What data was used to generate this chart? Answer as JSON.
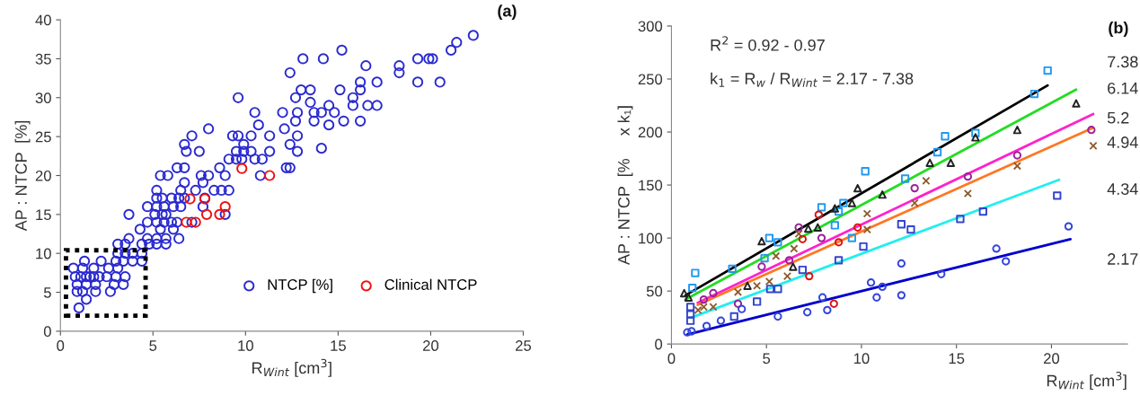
{
  "chart_data": [
    {
      "type": "scatter",
      "xlabel": "R$_{Wint}$ [cm$^{3}$]",
      "ylabel": "AP : NTCP  [%]",
      "xlim": [
        0,
        25
      ],
      "ylim": [
        0,
        40
      ],
      "xticks": [
        0,
        5,
        10,
        15,
        20,
        25
      ],
      "yticks": [
        0,
        5,
        10,
        15,
        20,
        25,
        30,
        35,
        40
      ],
      "grid": false,
      "legend": "lower right",
      "annotations": [
        "(a)"
      ],
      "series": [
        {
          "name": "NTCP [%]",
          "color": "#2a2ad0",
          "marker": "circle",
          "x": [
            9.6,
            10.5,
            10.7,
            8.0,
            7.1,
            9.3,
            9.6,
            10.3,
            11.3,
            6.7,
            9.9,
            6.8,
            7.5,
            9.5,
            9.9,
            10.3,
            11.3,
            9.1,
            9.5,
            9.8,
            10.5,
            10.9,
            6.3,
            6.7,
            8.6,
            5.4,
            5.8,
            7.6,
            8.0,
            8.9,
            10.8,
            6.7,
            7.7,
            5.2,
            6.5,
            7.3,
            8.3,
            8.7,
            9.1,
            5.2,
            5.5,
            6.0,
            6.4,
            6.7,
            7.8,
            4.7,
            5.2,
            5.6,
            6.1,
            6.5,
            7.7,
            3.7,
            5.1,
            5.5,
            5.7,
            8.9,
            4.7,
            5.2,
            5.6,
            6.0,
            6.3,
            7.1,
            4.3,
            5.4,
            6.1,
            3.7,
            4.7,
            5.2,
            5.7,
            6.4,
            3.1,
            3.5,
            4.4,
            4.8,
            5.2,
            5.7,
            3.1,
            3.5,
            3.9,
            4.4,
            1.3,
            2.2,
            3.0,
            3.4,
            3.9,
            4.4,
            0.7,
            1.2,
            1.8,
            2.6,
            3.1,
            0.8,
            1.1,
            1.4,
            1.6,
            1.8,
            2.1,
            2.5,
            3.0,
            3.5,
            0.9,
            1.4,
            1.9,
            2.9,
            3.4,
            0.9,
            1.2,
            1.9,
            2.7,
            1.4,
            1.0,
            12.8,
            12.4,
            12.8,
            12.2,
            12.4,
            22.3,
            21.4,
            21.1,
            15.2,
            13.1,
            14.2,
            19.3,
            19.9,
            20.1,
            16.5,
            18.3,
            12.4,
            18.3,
            16.2,
            17.1,
            19.3,
            20.5,
            13.0,
            13.5,
            15.1,
            16.2,
            12.7,
            15.8,
            13.5,
            14.5,
            15.8,
            16.6,
            17.1,
            12.0,
            12.8,
            13.7,
            14.1,
            14.8,
            12.7,
            13.7,
            15.3,
            16.2,
            14.5,
            12.1,
            14.1
          ],
          "values": [
            30.0,
            28.1,
            26.5,
            26.0,
            25.1,
            25.1,
            25.1,
            25.1,
            25.1,
            24.0,
            24.0,
            23.1,
            23.1,
            23.1,
            23.1,
            23.1,
            23.1,
            22.1,
            22.1,
            22.1,
            22.1,
            22.1,
            21.0,
            21.0,
            21.0,
            20.0,
            20.0,
            20.0,
            20.0,
            20.0,
            20.0,
            19.1,
            19.1,
            18.1,
            18.1,
            18.1,
            18.1,
            18.1,
            18.1,
            17.1,
            17.1,
            17.1,
            17.1,
            17.1,
            17.1,
            16.0,
            16.0,
            16.0,
            16.0,
            16.0,
            16.0,
            15.0,
            15.0,
            15.0,
            15.0,
            15.0,
            14.0,
            14.0,
            14.0,
            14.0,
            14.0,
            14.0,
            13.1,
            13.1,
            13.1,
            11.9,
            11.9,
            11.9,
            11.9,
            11.9,
            11.2,
            11.2,
            11.2,
            11.2,
            11.2,
            11.2,
            10.0,
            10.0,
            10.0,
            10.0,
            9.0,
            9.0,
            9.0,
            9.0,
            9.0,
            9.0,
            8.1,
            8.1,
            8.1,
            8.1,
            8.1,
            7.0,
            7.0,
            7.0,
            7.0,
            7.0,
            7.0,
            7.0,
            7.0,
            7.0,
            6.0,
            6.0,
            6.0,
            6.0,
            6.0,
            5.1,
            5.1,
            5.1,
            5.1,
            4.1,
            3.0,
            25.1,
            24.0,
            23.1,
            21.0,
            21.0,
            38.0,
            37.1,
            36.1,
            36.1,
            35.0,
            35.0,
            35.0,
            35.0,
            35.0,
            34.1,
            34.1,
            33.2,
            33.2,
            32.0,
            32.0,
            32.0,
            32.0,
            31.0,
            31.0,
            31.0,
            31.0,
            30.0,
            30.0,
            29.4,
            29.0,
            29.0,
            29.0,
            29.0,
            28.1,
            28.1,
            28.1,
            28.1,
            28.1,
            27.0,
            27.0,
            27.0,
            27.0,
            26.5,
            26.0,
            23.5
          ]
        },
        {
          "name": "Clinical NTCP",
          "color": "#ee1111",
          "marker": "circle",
          "x": [
            9.8,
            11.3,
            7.0,
            7.8,
            8.9,
            7.9,
            8.6,
            6.8,
            7.3
          ],
          "values": [
            20.9,
            20.0,
            17.0,
            17.0,
            16.0,
            15.0,
            15.0,
            14.0,
            14.0
          ]
        }
      ]
    },
    {
      "type": "scatter",
      "xlabel": "R$_{Wint}$ [cm$^{3}$]",
      "ylabel": "AP : NTCP  [%     x k₁]",
      "xlim": [
        0,
        24
      ],
      "ylim": [
        0,
        300
      ],
      "xticks": [
        0,
        5,
        10,
        15,
        20
      ],
      "yticks": [
        0,
        50,
        100,
        150,
        200,
        250,
        300
      ],
      "grid": false,
      "annotations": [
        "(b)",
        "R$^{2}$ = 0.92 - 0.97",
        "k$_{1}$ = R$_{w}$ / R$_{Wint}$ = 2.17 - 7.38",
        "7.38",
        "6.14",
        "5.2",
        "4.94",
        "4.34",
        "2.17"
      ],
      "series": [
        {
          "type": "line",
          "color": "#000000",
          "line_style": "solid",
          "x": [
            0.74,
            19.8
          ],
          "values": [
            46,
            244
          ]
        },
        {
          "type": "line",
          "color": "#22dd22",
          "line_style": "solid",
          "x": [
            0.74,
            21.3
          ],
          "values": [
            42,
            240
          ]
        },
        {
          "type": "line",
          "color": "#ff22cc",
          "line_style": "solid",
          "x": [
            1.38,
            22.2
          ],
          "values": [
            39,
            217
          ]
        },
        {
          "type": "line",
          "color": "#ff7722",
          "line_style": "solid",
          "x": [
            1.38,
            22.2
          ],
          "values": [
            37,
            204
          ]
        },
        {
          "type": "line",
          "color": "#22eeee",
          "line_style": "solid",
          "x": [
            1.06,
            20.4
          ],
          "values": [
            25,
            155
          ]
        },
        {
          "type": "line",
          "color": "#0000cc",
          "line_style": "solid",
          "x": [
            0.83,
            21.0
          ],
          "values": [
            9,
            99
          ]
        },
        {
          "type": "scatter",
          "color": "#2299ee",
          "marker": "square",
          "x": [
            19.8,
            19.1,
            14.4,
            14.0,
            16.0,
            12.3,
            10.2,
            7.9,
            9.05,
            8.8,
            8.6,
            5.15,
            5.6,
            4.9,
            3.2,
            1.25,
            1.1,
            9.5
          ],
          "values": [
            258,
            236,
            196,
            181,
            199,
            156,
            163,
            129,
            133,
            125,
            112,
            100,
            96,
            81,
            71,
            67,
            53,
            100
          ]
        },
        {
          "type": "scatter",
          "color": "#222222",
          "marker": "triangle",
          "x": [
            21.3,
            18.2,
            16.0,
            13.6,
            14.7,
            11.1,
            9.8,
            9.5,
            8.6,
            7.7,
            7.2,
            4.75,
            6.4,
            4.0,
            0.67,
            0.9
          ],
          "values": [
            227,
            202,
            195,
            171,
            171,
            141,
            147,
            133,
            128,
            110,
            109,
            97,
            73,
            55,
            48,
            44
          ]
        },
        {
          "type": "scatter",
          "color": "#992299",
          "marker": "circle",
          "x": [
            22.1,
            18.2,
            15.6,
            12.8,
            6.7,
            7.9,
            4.75,
            6.2,
            2.2,
            1.7,
            3.5
          ],
          "values": [
            202,
            178,
            158,
            147,
            110,
            100,
            73,
            79,
            48,
            42,
            38
          ]
        },
        {
          "type": "scatter",
          "color": "#8b5a2b",
          "marker": "cross",
          "x": [
            22.2,
            18.2,
            15.6,
            13.4,
            12.8,
            10.3,
            10.3,
            6.7,
            6.45,
            5.5,
            6.1,
            5.15,
            4.5,
            3.5,
            2.2,
            1.7,
            1.4
          ],
          "values": [
            187,
            168,
            142,
            154,
            133,
            123,
            108,
            104,
            90,
            83,
            64,
            59,
            55,
            49,
            35,
            35,
            32
          ]
        },
        {
          "type": "scatter",
          "color": "#3344cc",
          "marker": "square",
          "x": [
            20.3,
            16.4,
            15.2,
            12.1,
            12.6,
            10.1,
            8.8,
            6.9,
            5.6,
            5.2,
            4.5,
            3.3,
            1.0,
            1.0,
            1.0
          ],
          "values": [
            140,
            125,
            118,
            113,
            108,
            92,
            79,
            70,
            52,
            52,
            40,
            26,
            35,
            28,
            22
          ]
        },
        {
          "type": "scatter",
          "color": "#3344dd",
          "marker": "circle",
          "x": [
            20.9,
            17.1,
            17.6,
            12.1,
            14.2,
            12.1,
            11.1,
            10.5,
            10.8,
            7.95,
            8.2,
            7.15,
            5.6,
            3.7,
            2.6,
            1.85,
            1.06,
            0.83
          ],
          "values": [
            111,
            90,
            78,
            76,
            66,
            46,
            54,
            58,
            44,
            44,
            32,
            30,
            26,
            33,
            22,
            17,
            12,
            11
          ]
        },
        {
          "type": "scatter",
          "color": "#dd1111",
          "marker": "circle",
          "x": [
            7.75,
            6.9,
            8.8,
            9.8,
            7.25,
            8.55
          ],
          "values": [
            122,
            99,
            96,
            110,
            64,
            38
          ]
        }
      ]
    }
  ]
}
